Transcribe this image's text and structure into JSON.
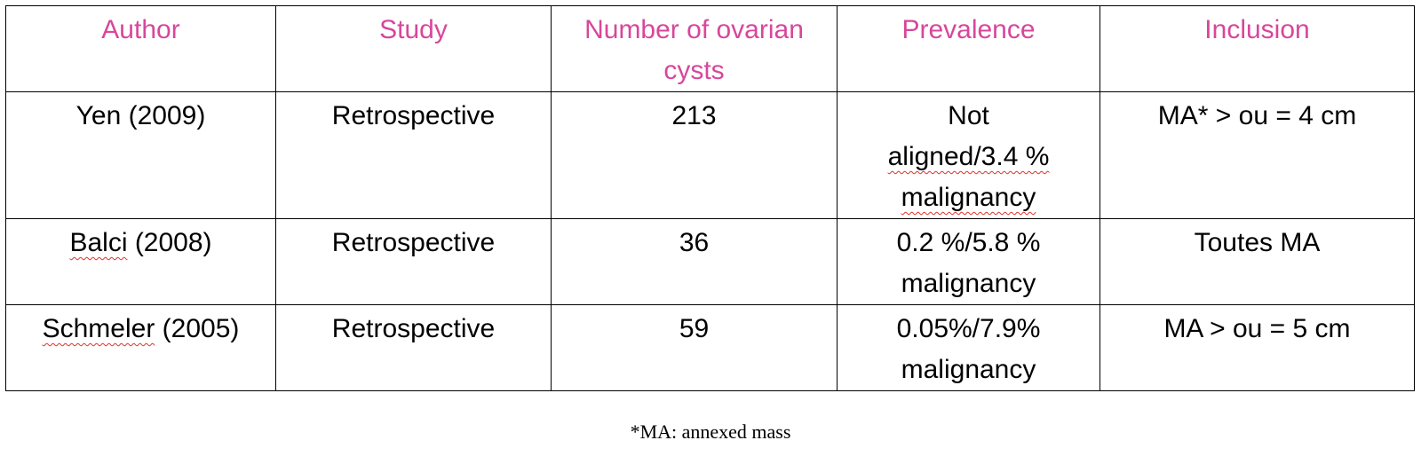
{
  "table": {
    "headers": [
      "Author",
      "Study",
      "Number of ovarian cysts",
      "Prevalence",
      "Inclusion"
    ],
    "rows": [
      {
        "author": "Yen (2009)",
        "study": "Retrospective",
        "cysts": "213",
        "prev_1": "Not",
        "prev_2": "aligned/3.4 %",
        "prev_3": "malignancy",
        "inclusion": "MA* > ou = 4 cm"
      },
      {
        "author_sq": "Balci",
        "author_rest": " (2008)",
        "study": "Retrospective",
        "cysts": "36",
        "prev_1": "0.2 %/5.8 %",
        "prev_2": "malignancy",
        "inclusion": "Toutes MA"
      },
      {
        "author_sq": "Schmeler",
        "author_rest": " (2005)",
        "study": "Retrospective",
        "cysts": "59",
        "prev_1": "0.05%/7.9%",
        "prev_2": "malignancy",
        "inclusion": "MA > ou = 5 cm"
      }
    ]
  },
  "footnote": "*MA: annexed mass",
  "colors": {
    "header_text": "#d7479b",
    "border": "#000000",
    "spellcheck_underline": "#e0312b"
  }
}
